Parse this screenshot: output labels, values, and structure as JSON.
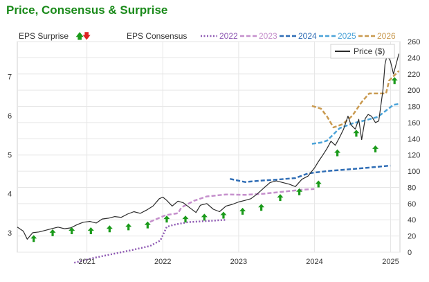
{
  "chart_data": {
    "type": "line",
    "title": "Price, Consensus & Surprise",
    "x_range": [
      "2020-02-01",
      "2025-02-15"
    ],
    "x_ticks": [
      "2021",
      "2022",
      "2023",
      "2024",
      "2025"
    ],
    "y_left": {
      "ticks": [
        "3",
        "4",
        "5",
        "6",
        "7"
      ],
      "range": [
        2.5,
        7.9
      ]
    },
    "y_right": {
      "ticks": [
        "0",
        "20",
        "40",
        "60",
        "80",
        "100",
        "120",
        "140",
        "160",
        "180",
        "200",
        "220",
        "240",
        "260"
      ],
      "range": [
        0,
        260
      ]
    },
    "grid": true,
    "legend": {
      "surprise_label": "EPS Surprise",
      "consensus_label": "EPS Consensus",
      "up_color": "#1a9a1a",
      "down_color": "#dd2222",
      "up_glyph": "🡅",
      "down_glyph": "🡇"
    },
    "consensus_series": [
      {
        "name": "2022",
        "color": "#8e59b3",
        "dash": "dots",
        "points": [
          [
            "2020-11-01",
            2.23
          ],
          [
            "2021-02-01",
            2.35
          ],
          [
            "2021-05-01",
            2.45
          ],
          [
            "2021-08-01",
            2.55
          ],
          [
            "2021-11-01",
            2.66
          ],
          [
            "2021-12-20",
            2.8
          ],
          [
            "2022-01-20",
            3.15
          ],
          [
            "2022-02-20",
            3.2
          ],
          [
            "2022-05-01",
            3.27
          ],
          [
            "2022-08-01",
            3.3
          ],
          [
            "2022-10-31",
            3.33
          ]
        ]
      },
      {
        "name": "2023",
        "color": "#c58fcc",
        "dash": "dashes",
        "points": [
          [
            "2021-11-01",
            3.28
          ],
          [
            "2022-01-15",
            3.45
          ],
          [
            "2022-03-15",
            3.5
          ],
          [
            "2022-04-01",
            3.65
          ],
          [
            "2022-06-01",
            3.82
          ],
          [
            "2022-08-01",
            3.93
          ],
          [
            "2022-11-01",
            3.98
          ],
          [
            "2023-02-01",
            3.97
          ],
          [
            "2023-05-01",
            4.0
          ],
          [
            "2023-08-01",
            4.05
          ],
          [
            "2023-11-01",
            4.1
          ],
          [
            "2023-12-31",
            4.12
          ]
        ]
      },
      {
        "name": "2024",
        "color": "#2f6db5",
        "dash": "dashes",
        "points": [
          [
            "2022-11-20",
            4.38
          ],
          [
            "2023-02-01",
            4.3
          ],
          [
            "2023-05-01",
            4.34
          ],
          [
            "2023-07-01",
            4.36
          ],
          [
            "2023-10-01",
            4.4
          ],
          [
            "2023-12-01",
            4.52
          ],
          [
            "2024-03-01",
            4.58
          ],
          [
            "2024-06-01",
            4.62
          ],
          [
            "2024-09-01",
            4.66
          ],
          [
            "2024-12-31",
            4.72
          ]
        ]
      },
      {
        "name": "2025",
        "color": "#4ba3d8",
        "dash": "dashes",
        "points": [
          [
            "2023-12-20",
            5.28
          ],
          [
            "2024-02-01",
            5.31
          ],
          [
            "2024-03-01",
            5.36
          ],
          [
            "2024-05-01",
            5.68
          ],
          [
            "2024-07-01",
            5.8
          ],
          [
            "2024-09-01",
            5.88
          ],
          [
            "2024-11-01",
            5.97
          ],
          [
            "2025-01-15",
            6.28
          ],
          [
            "2025-02-10",
            6.3
          ]
        ]
      },
      {
        "name": "2026",
        "color": "#c99a50",
        "dash": "dashes",
        "points": [
          [
            "2023-12-20",
            6.25
          ],
          [
            "2024-02-01",
            6.18
          ],
          [
            "2024-03-01",
            5.98
          ],
          [
            "2024-04-01",
            5.7
          ],
          [
            "2024-05-15",
            5.78
          ],
          [
            "2024-07-01",
            6.0
          ],
          [
            "2024-08-15",
            6.35
          ],
          [
            "2024-09-20",
            6.57
          ],
          [
            "2024-11-01",
            6.57
          ],
          [
            "2024-12-10",
            6.57
          ],
          [
            "2024-12-25",
            6.9
          ],
          [
            "2025-02-10",
            7.15
          ]
        ]
      }
    ],
    "price": {
      "name": "Price ($)",
      "color": "#2a2a2a",
      "points": [
        [
          "2020-02-01",
          31
        ],
        [
          "2020-03-01",
          26
        ],
        [
          "2020-03-20",
          16
        ],
        [
          "2020-04-15",
          24
        ],
        [
          "2020-05-15",
          25
        ],
        [
          "2020-06-15",
          27
        ],
        [
          "2020-07-15",
          29
        ],
        [
          "2020-08-15",
          31
        ],
        [
          "2020-09-15",
          29
        ],
        [
          "2020-10-15",
          30
        ],
        [
          "2020-11-15",
          34
        ],
        [
          "2020-12-15",
          37
        ],
        [
          "2021-01-15",
          38
        ],
        [
          "2021-02-15",
          36
        ],
        [
          "2021-03-15",
          41
        ],
        [
          "2021-04-15",
          42
        ],
        [
          "2021-05-15",
          44
        ],
        [
          "2021-06-15",
          43
        ],
        [
          "2021-07-15",
          47
        ],
        [
          "2021-08-15",
          50
        ],
        [
          "2021-09-15",
          48
        ],
        [
          "2021-10-15",
          52
        ],
        [
          "2021-11-15",
          57
        ],
        [
          "2021-12-15",
          66
        ],
        [
          "2022-01-01",
          68
        ],
        [
          "2022-01-20",
          64
        ],
        [
          "2022-02-15",
          57
        ],
        [
          "2022-03-15",
          63
        ],
        [
          "2022-04-10",
          61
        ],
        [
          "2022-05-10",
          55
        ],
        [
          "2022-06-10",
          49
        ],
        [
          "2022-07-01",
          58
        ],
        [
          "2022-08-01",
          60
        ],
        [
          "2022-09-01",
          53
        ],
        [
          "2022-10-01",
          50
        ],
        [
          "2022-11-01",
          57
        ],
        [
          "2022-12-01",
          59
        ],
        [
          "2023-01-01",
          62
        ],
        [
          "2023-02-01",
          64
        ],
        [
          "2023-03-01",
          66
        ],
        [
          "2023-04-01",
          72
        ],
        [
          "2023-05-01",
          79
        ],
        [
          "2023-06-01",
          86
        ],
        [
          "2023-07-01",
          88
        ],
        [
          "2023-08-01",
          86
        ],
        [
          "2023-09-01",
          84
        ],
        [
          "2023-10-01",
          81
        ],
        [
          "2023-11-01",
          90
        ],
        [
          "2023-12-01",
          94
        ],
        [
          "2024-01-01",
          104
        ],
        [
          "2024-01-20",
          112
        ],
        [
          "2024-02-10",
          120
        ],
        [
          "2024-03-01",
          128
        ],
        [
          "2024-03-20",
          137
        ],
        [
          "2024-04-10",
          132
        ],
        [
          "2024-05-01",
          142
        ],
        [
          "2024-05-20",
          152
        ],
        [
          "2024-06-10",
          168
        ],
        [
          "2024-06-25",
          157
        ],
        [
          "2024-07-15",
          152
        ],
        [
          "2024-08-01",
          164
        ],
        [
          "2024-08-15",
          139
        ],
        [
          "2024-09-01",
          165
        ],
        [
          "2024-09-15",
          170
        ],
        [
          "2024-10-01",
          168
        ],
        [
          "2024-10-20",
          160
        ],
        [
          "2024-11-05",
          162
        ],
        [
          "2024-11-25",
          200
        ],
        [
          "2024-12-05",
          232
        ],
        [
          "2024-12-15",
          243
        ],
        [
          "2024-12-31",
          236
        ],
        [
          "2025-01-15",
          220
        ],
        [
          "2025-02-10",
          245
        ]
      ]
    },
    "surprises": {
      "direction": "up",
      "dates": [
        "2020-04-20",
        "2020-07-20",
        "2020-10-20",
        "2021-01-20",
        "2021-04-20",
        "2021-07-20",
        "2021-10-20",
        "2022-01-20",
        "2022-04-20",
        "2022-07-20",
        "2022-10-20",
        "2023-01-20",
        "2023-04-20",
        "2023-07-20",
        "2023-10-20",
        "2024-01-20",
        "2024-04-20",
        "2024-07-20",
        "2024-10-20",
        "2025-01-20"
      ],
      "values": [
        2.85,
        3.0,
        3.05,
        3.05,
        3.1,
        3.15,
        3.2,
        3.35,
        3.35,
        3.4,
        3.45,
        3.55,
        3.65,
        3.9,
        4.05,
        4.25,
        5.05,
        5.55,
        5.15,
        6.9
      ]
    }
  }
}
